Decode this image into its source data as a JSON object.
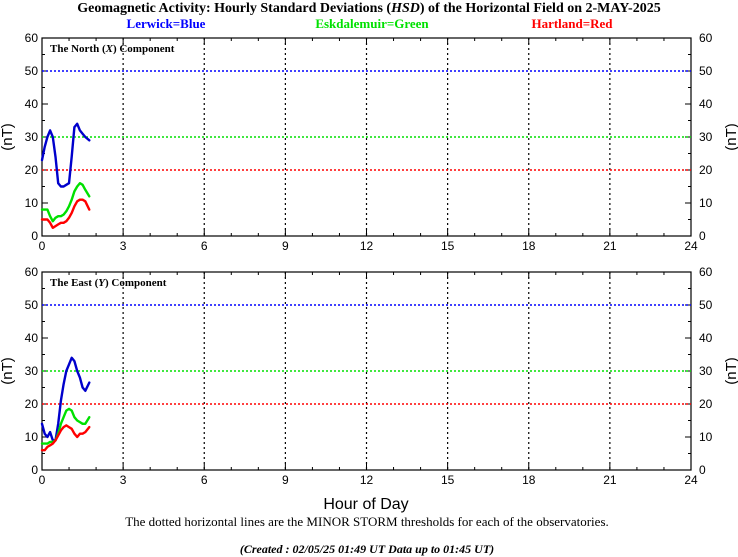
{
  "title": {
    "prefix": "Geomagnetic Activity: Hourly Standard Deviations (",
    "italic": "HSD",
    "suffix": ") of the Horizontal Field on 2-MAY-2025"
  },
  "legend": [
    {
      "label": "Lerwick=Blue",
      "color": "#0000ff"
    },
    {
      "label": "Eskdalemuir=Green",
      "color": "#00e000"
    },
    {
      "label": "Hartland=Red",
      "color": "#ff0000"
    }
  ],
  "xlabel": "Hour of Day",
  "ylabel": "(nT)",
  "footnote": "The dotted horizontal lines are the MINOR STORM thresholds for each of the observatories.",
  "created": "(Created : 02/05/25 01:49 UT  Data up to 01:45 UT)",
  "chart_data": [
    {
      "type": "line",
      "panel_label": {
        "pre": "The North (",
        "italic": "X",
        "post": ") Component"
      },
      "xlim": [
        0,
        24
      ],
      "ylim": [
        0,
        60
      ],
      "xticks": [
        0,
        3,
        6,
        9,
        12,
        15,
        18,
        21,
        24
      ],
      "yticks": [
        0,
        10,
        20,
        30,
        40,
        50,
        60
      ],
      "thresholds": [
        {
          "value": 50,
          "color": "#0000ff"
        },
        {
          "value": 30,
          "color": "#00e000"
        },
        {
          "value": 20,
          "color": "#ff0000"
        }
      ],
      "series": [
        {
          "color": "#0000cc",
          "x": [
            0,
            0.1,
            0.2,
            0.3,
            0.4,
            0.5,
            0.6,
            0.7,
            0.8,
            0.9,
            1.0,
            1.1,
            1.2,
            1.3,
            1.4,
            1.5,
            1.6,
            1.75
          ],
          "y": [
            23,
            27,
            30,
            32,
            30,
            24,
            16,
            15,
            15,
            15.5,
            16,
            24,
            33,
            34,
            32,
            31,
            30,
            29
          ]
        },
        {
          "color": "#00e000",
          "x": [
            0,
            0.1,
            0.2,
            0.3,
            0.4,
            0.5,
            0.6,
            0.7,
            0.8,
            0.9,
            1.0,
            1.1,
            1.2,
            1.3,
            1.4,
            1.5,
            1.6,
            1.75
          ],
          "y": [
            8,
            8,
            8,
            6,
            4.5,
            5.5,
            6,
            6,
            6.5,
            7.5,
            9,
            11,
            13.5,
            15,
            16,
            15.5,
            14,
            12
          ]
        },
        {
          "color": "#ff0000",
          "x": [
            0,
            0.1,
            0.2,
            0.3,
            0.4,
            0.5,
            0.6,
            0.7,
            0.8,
            0.9,
            1.0,
            1.1,
            1.2,
            1.3,
            1.4,
            1.5,
            1.6,
            1.75
          ],
          "y": [
            5,
            5,
            5,
            4,
            2.5,
            3,
            3.5,
            4,
            4,
            4.5,
            5.5,
            7,
            9,
            10.5,
            11,
            11,
            10.5,
            8
          ]
        }
      ]
    },
    {
      "type": "line",
      "panel_label": {
        "pre": "The East (",
        "italic": "Y",
        "post": ") Component"
      },
      "xlim": [
        0,
        24
      ],
      "ylim": [
        0,
        60
      ],
      "xticks": [
        0,
        3,
        6,
        9,
        12,
        15,
        18,
        21,
        24
      ],
      "yticks": [
        0,
        10,
        20,
        30,
        40,
        50,
        60
      ],
      "thresholds": [
        {
          "value": 50,
          "color": "#0000ff"
        },
        {
          "value": 30,
          "color": "#00e000"
        },
        {
          "value": 20,
          "color": "#ff0000"
        }
      ],
      "series": [
        {
          "color": "#0000cc",
          "x": [
            0,
            0.1,
            0.2,
            0.3,
            0.4,
            0.5,
            0.6,
            0.7,
            0.8,
            0.9,
            1.0,
            1.1,
            1.2,
            1.3,
            1.4,
            1.5,
            1.6,
            1.75
          ],
          "y": [
            14,
            11,
            10,
            11.5,
            9,
            9,
            14,
            21,
            26,
            30,
            32,
            34,
            33,
            30,
            28,
            25,
            24,
            26.5
          ]
        },
        {
          "color": "#00e000",
          "x": [
            0,
            0.1,
            0.2,
            0.3,
            0.4,
            0.5,
            0.6,
            0.7,
            0.8,
            0.9,
            1.0,
            1.1,
            1.2,
            1.3,
            1.4,
            1.5,
            1.6,
            1.75
          ],
          "y": [
            8,
            8,
            8,
            8.5,
            8.5,
            9,
            11,
            14,
            16,
            18,
            18.5,
            18,
            16,
            15,
            14.5,
            14,
            14,
            16
          ]
        },
        {
          "color": "#ff0000",
          "x": [
            0,
            0.1,
            0.2,
            0.3,
            0.4,
            0.5,
            0.6,
            0.7,
            0.8,
            0.9,
            1.0,
            1.1,
            1.2,
            1.3,
            1.4,
            1.5,
            1.6,
            1.75
          ],
          "y": [
            6,
            6,
            7,
            7.5,
            8,
            9,
            10.5,
            12,
            13,
            13.5,
            13,
            12.5,
            11,
            10,
            11,
            11,
            11.5,
            13
          ]
        }
      ]
    }
  ]
}
